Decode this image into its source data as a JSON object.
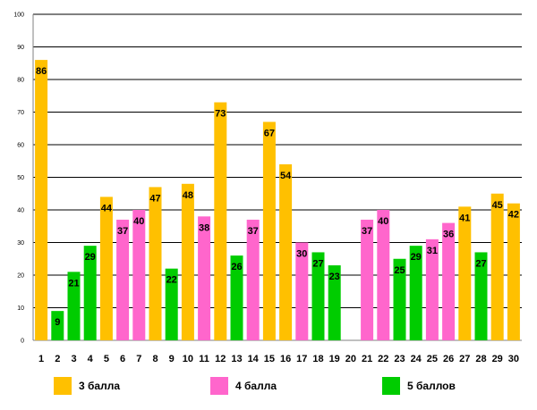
{
  "chart_data": {
    "type": "bar",
    "categories": [
      "1",
      "2",
      "3",
      "4",
      "5",
      "6",
      "7",
      "8",
      "9",
      "10",
      "11",
      "12",
      "13",
      "14",
      "15",
      "16",
      "17",
      "18",
      "19",
      "20",
      "21",
      "22",
      "23",
      "24",
      "25",
      "26",
      "27",
      "28",
      "29",
      "30"
    ],
    "values": [
      86,
      9,
      21,
      29,
      44,
      37,
      40,
      47,
      22,
      48,
      38,
      73,
      26,
      37,
      67,
      54,
      30,
      27,
      23,
      null,
      37,
      40,
      25,
      29,
      31,
      36,
      41,
      27,
      45,
      42
    ],
    "groups": [
      "3",
      "5",
      "5",
      "5",
      "3",
      "4",
      "4",
      "3",
      "5",
      "3",
      "4",
      "3",
      "5",
      "4",
      "3",
      "3",
      "4",
      "5",
      "5",
      "",
      "4",
      "4",
      "5",
      "5",
      "4",
      "4",
      "3",
      "5",
      "3",
      "3"
    ],
    "ylim": [
      0,
      100
    ],
    "yticks": [
      0,
      10,
      20,
      30,
      40,
      50,
      60,
      70,
      80,
      90,
      100
    ],
    "grid": true,
    "title": "",
    "xlabel": "",
    "ylabel": "",
    "legend": {
      "placement": "bottom",
      "entries": [
        {
          "key": "3",
          "label": "3 балла",
          "color": "#FFC000"
        },
        {
          "key": "4",
          "label": "4 балла",
          "color": "#FF66CC"
        },
        {
          "key": "5",
          "label": "5 баллов",
          "color": "#00CC00"
        }
      ]
    }
  }
}
